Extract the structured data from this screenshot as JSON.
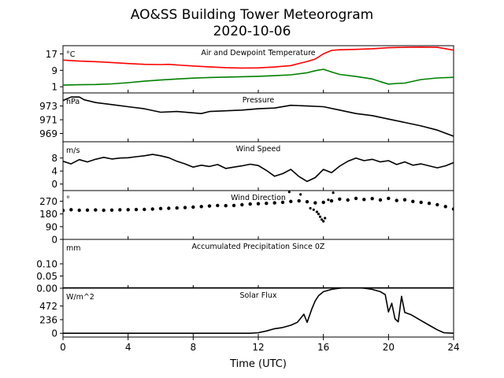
{
  "figure": {
    "title_line1": "AO&SS Building Tower Meteorogram",
    "title_line2": "2020-10-06",
    "xlabel": "Time (UTC)",
    "xlim": [
      0,
      24
    ],
    "xticks": [
      0,
      4,
      8,
      12,
      16,
      20,
      24
    ],
    "xtick_labels": [
      "0",
      "4",
      "8",
      "12",
      "16",
      "20",
      "24"
    ]
  },
  "chart_data": [
    {
      "type": "line",
      "title": "Air and Dewpoint Temperature",
      "unit": "°C",
      "ylim": [
        -2,
        21
      ],
      "yticks": [
        1,
        9,
        17
      ],
      "ytick_labels": [
        "1",
        "9",
        "17"
      ],
      "series": [
        {
          "color": "#ff0000",
          "x": [
            0,
            1,
            2,
            3,
            4,
            5,
            6,
            6.5,
            7,
            8,
            9,
            10,
            11,
            12,
            13,
            14,
            15,
            15.5,
            16,
            16.5,
            17,
            18,
            19,
            20,
            21,
            22,
            23,
            24
          ],
          "y": [
            14,
            13.5,
            13.2,
            12.8,
            12.3,
            11.9,
            11.8,
            11.9,
            11.6,
            11.1,
            10.7,
            10.3,
            10.1,
            10.2,
            10.6,
            11.3,
            13.3,
            14.5,
            17,
            18.7,
            19,
            19.2,
            19.5,
            20.0,
            20.2,
            20.3,
            20.2,
            18.8
          ]
        },
        {
          "color": "#008000",
          "x": [
            0,
            1,
            2,
            3,
            4,
            5,
            6,
            7,
            8,
            9,
            10,
            11,
            12,
            13,
            14,
            15,
            15.5,
            16,
            16.5,
            17,
            18,
            19,
            19.5,
            20,
            20.5,
            21,
            22,
            23,
            24
          ],
          "y": [
            1.8,
            2,
            2.1,
            2.4,
            3.0,
            3.7,
            4.3,
            4.8,
            5.2,
            5.5,
            5.7,
            5.9,
            6.1,
            6.4,
            6.8,
            7.8,
            8.8,
            9.5,
            8.2,
            7.0,
            6.0,
            4.8,
            3.5,
            2.3,
            2.6,
            2.8,
            4.5,
            5.3,
            5.6
          ]
        }
      ]
    },
    {
      "type": "line",
      "title": "Pressure",
      "unit": "hPa",
      "ylim": [
        967.8,
        974.9
      ],
      "yticks": [
        969,
        971,
        973
      ],
      "ytick_labels": [
        "969",
        "971",
        "973"
      ],
      "series": [
        {
          "color": "#000000",
          "x": [
            0,
            0.5,
            1,
            1.3,
            2,
            3,
            4,
            5,
            6,
            7,
            8,
            8.5,
            9,
            10,
            11,
            12,
            13,
            14,
            15,
            16,
            17,
            18,
            19,
            20,
            21,
            22,
            23,
            24
          ],
          "y": [
            973.8,
            974.3,
            974.3,
            973.9,
            973.5,
            973.2,
            972.9,
            972.6,
            972.1,
            972.2,
            972.0,
            971.9,
            972.2,
            972.3,
            972.4,
            972.6,
            972.7,
            973.1,
            973.0,
            972.9,
            972.4,
            971.9,
            971.6,
            971.1,
            970.6,
            970.1,
            969.5,
            968.6
          ]
        }
      ]
    },
    {
      "type": "line",
      "title": "Wind Speed",
      "unit": "m/s",
      "ylim": [
        -2,
        13
      ],
      "yticks": [
        0,
        4,
        8
      ],
      "ytick_labels": [
        "0",
        "4",
        "8"
      ],
      "series": [
        {
          "color": "#000000",
          "x": [
            0,
            0.5,
            1,
            1.5,
            2,
            2.5,
            3,
            3.5,
            4,
            4.5,
            5,
            5.5,
            6,
            6.5,
            7,
            7.5,
            8,
            8.5,
            9,
            9.5,
            10,
            10.5,
            11,
            11.5,
            12,
            12.5,
            13,
            13.5,
            14,
            14.5,
            15,
            15.5,
            16,
            16.5,
            17,
            17.5,
            18,
            18.5,
            19,
            19.5,
            20,
            20.5,
            21,
            21.5,
            22,
            22.5,
            23,
            23.5,
            24
          ],
          "y": [
            7,
            6.2,
            7.5,
            6.8,
            7.6,
            8.2,
            7.7,
            8.0,
            8.1,
            8.4,
            8.7,
            9.1,
            8.7,
            8.1,
            7.0,
            6.2,
            5.2,
            5.8,
            5.4,
            6.0,
            4.8,
            5.2,
            5.6,
            6.1,
            5.7,
            4.2,
            2.4,
            3.2,
            4.5,
            2.3,
            0.8,
            2.0,
            4.5,
            3.5,
            5.5,
            7.0,
            8.0,
            7.2,
            7.6,
            6.8,
            7.2,
            6.0,
            6.8,
            5.8,
            6.2,
            5.6,
            5.0,
            5.6,
            6.6
          ]
        }
      ]
    },
    {
      "type": "scatter",
      "title": "Wind Direction",
      "unit": "°",
      "ylim": [
        0,
        345
      ],
      "yticks": [
        0,
        90,
        180,
        270
      ],
      "ytick_labels": [
        "0",
        "90",
        "180",
        "270"
      ],
      "series": [
        {
          "color": "#000000",
          "x": [
            0,
            0.5,
            1,
            1.5,
            2,
            2.5,
            3,
            3.5,
            4,
            4.5,
            5,
            5.5,
            6,
            6.5,
            7,
            7.5,
            8,
            8.5,
            9,
            9.5,
            10,
            10.5,
            11,
            11.5,
            12,
            12.5,
            13,
            13.5,
            14,
            14.5,
            15,
            15.5,
            16,
            16.5,
            17,
            17.5,
            18,
            18.5,
            19,
            19.5,
            20,
            20.5,
            21,
            21.5,
            22,
            22.5,
            23,
            23.5,
            24
          ],
          "y": [
            205,
            210,
            206,
            207,
            208,
            206,
            207,
            209,
            210,
            211,
            212,
            214,
            218,
            220,
            222,
            225,
            228,
            232,
            236,
            240,
            238,
            240,
            245,
            250,
            252,
            255,
            258,
            262,
            268,
            272,
            266,
            258,
            262,
            272,
            285,
            278,
            290,
            282,
            288,
            279,
            290,
            275,
            280,
            268,
            262,
            255,
            245,
            232,
            215
          ]
        },
        {
          "color": "#000000",
          "x": [
            13.9,
            14.6,
            15.2,
            15.4,
            15.6,
            15.7,
            15.8,
            15.9,
            16.0,
            16.1,
            16.3,
            16.6
          ],
          "y": [
            335,
            318,
            220,
            210,
            195,
            180,
            160,
            140,
            128,
            150,
            280,
            330
          ]
        }
      ]
    },
    {
      "type": "line",
      "title": "Accumulated Precipitation Since 0Z",
      "unit": "mm",
      "ylim": [
        0,
        0.2
      ],
      "yticks": [
        0.0,
        0.05,
        0.1
      ],
      "ytick_labels": [
        "0.00",
        "0.05",
        "0.10"
      ],
      "series": [
        {
          "color": "#000000",
          "x": [
            0,
            24
          ],
          "y": [
            0,
            0
          ]
        }
      ]
    },
    {
      "type": "line",
      "title": "Solar Flux",
      "unit": "W/m^2",
      "ylim": [
        -65,
        780
      ],
      "yticks": [
        0,
        236,
        472
      ],
      "ytick_labels": [
        "0",
        "236",
        "472"
      ],
      "series": [
        {
          "color": "#000000",
          "x": [
            0,
            2,
            4,
            6,
            8,
            10,
            11.5,
            12,
            12.5,
            13,
            13.5,
            14,
            14.4,
            14.8,
            15.0,
            15.3,
            15.5,
            15.7,
            16,
            16.5,
            17,
            17.5,
            18,
            18.5,
            19,
            19.5,
            19.8,
            20.0,
            20.2,
            20.4,
            20.6,
            20.8,
            21.0,
            21.4,
            22,
            22.5,
            23,
            23.4,
            24
          ],
          "y": [
            0,
            0,
            0,
            0,
            0,
            0,
            0,
            10,
            40,
            80,
            100,
            140,
            190,
            330,
            190,
            430,
            560,
            650,
            720,
            760,
            780,
            790,
            790,
            780,
            760,
            720,
            670,
            370,
            520,
            250,
            200,
            640,
            360,
            320,
            220,
            140,
            60,
            10,
            0
          ]
        }
      ]
    }
  ]
}
